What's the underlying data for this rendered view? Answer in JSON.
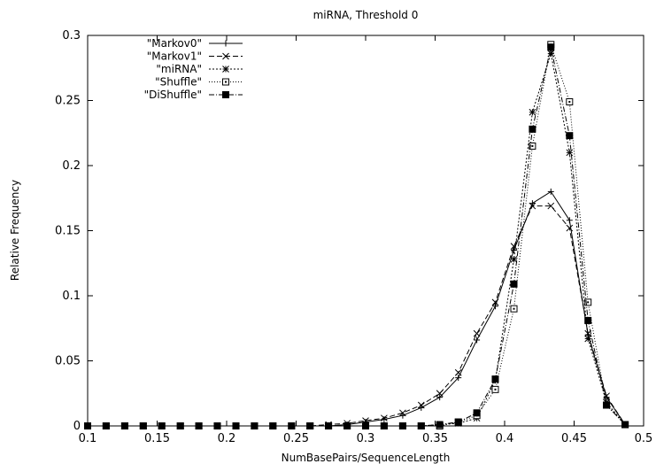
{
  "chart_data": {
    "type": "line",
    "title": "miRNA, Threshold 0",
    "xlabel": "NumBasePairs/SequenceLength",
    "ylabel": "Relative Frequency",
    "xlim": [
      0.1,
      0.5
    ],
    "ylim": [
      0,
      0.3
    ],
    "xticks": [
      0.1,
      0.15,
      0.2,
      0.25,
      0.3,
      0.35,
      0.4,
      0.45,
      0.5
    ],
    "xtick_labels": [
      "0.1",
      "0.15",
      "0.2",
      "0.25",
      "0.3",
      "0.35",
      "0.4",
      "0.45",
      "0.5"
    ],
    "yticks": [
      0,
      0.05,
      0.1,
      0.15,
      0.2,
      0.25,
      0.3
    ],
    "ytick_labels": [
      "0",
      "0.05",
      "0.1",
      "0.15",
      "0.2",
      "0.25",
      "0.3"
    ],
    "grid": false,
    "legend_position": "top-left",
    "x": [
      0.1,
      0.1133,
      0.1267,
      0.14,
      0.1533,
      0.1667,
      0.18,
      0.1933,
      0.2067,
      0.22,
      0.2333,
      0.2467,
      0.26,
      0.2733,
      0.2867,
      0.3,
      0.3133,
      0.3267,
      0.34,
      0.3533,
      0.3667,
      0.38,
      0.3933,
      0.4067,
      0.42,
      0.4333,
      0.4467,
      0.46,
      0.4733,
      0.4867
    ],
    "series": [
      {
        "name": "\"Markov0\"",
        "marker": "plus",
        "dash": "",
        "values": [
          0,
          0,
          0,
          0,
          0,
          0,
          0,
          0,
          0,
          0,
          0,
          0,
          0,
          0,
          0.001,
          0.003,
          0.005,
          0.008,
          0.014,
          0.022,
          0.037,
          0.066,
          0.092,
          0.135,
          0.171,
          0.18,
          0.158,
          0.07,
          0.022,
          0.001
        ]
      },
      {
        "name": "\"Markov1\"",
        "marker": "cross",
        "dash": "6,3",
        "values": [
          0,
          0,
          0,
          0,
          0,
          0,
          0,
          0,
          0,
          0,
          0,
          0,
          0,
          0.001,
          0.002,
          0.004,
          0.006,
          0.01,
          0.016,
          0.025,
          0.041,
          0.071,
          0.095,
          0.138,
          0.169,
          0.169,
          0.152,
          0.071,
          0.023,
          0.001
        ]
      },
      {
        "name": "\"miRNA\"",
        "marker": "star",
        "dash": "2,2",
        "values": [
          0,
          0,
          0,
          0,
          0,
          0,
          0,
          0,
          0,
          0,
          0,
          0,
          0,
          0,
          0,
          0,
          0,
          0,
          0,
          0.001,
          0.002,
          0.006,
          0.035,
          0.128,
          0.241,
          0.286,
          0.21,
          0.067,
          0.018,
          0.001
        ]
      },
      {
        "name": "\"Shuffle\"",
        "marker": "square-open",
        "dash": "1,2",
        "values": [
          0,
          0,
          0,
          0,
          0,
          0,
          0,
          0,
          0,
          0,
          0,
          0,
          0,
          0,
          0,
          0,
          0,
          0,
          0,
          0,
          0.003,
          0.008,
          0.028,
          0.09,
          0.215,
          0.293,
          0.249,
          0.095,
          0.016,
          0.001
        ]
      },
      {
        "name": "\"DiShuffle\"",
        "marker": "square-filled",
        "dash": "6,2,1,2",
        "values": [
          0,
          0,
          0,
          0,
          0,
          0,
          0,
          0,
          0,
          0,
          0,
          0,
          0,
          0,
          0,
          0,
          0,
          0,
          0,
          0.001,
          0.003,
          0.01,
          0.036,
          0.109,
          0.228,
          0.291,
          0.223,
          0.081,
          0.016,
          0.001
        ]
      }
    ]
  }
}
